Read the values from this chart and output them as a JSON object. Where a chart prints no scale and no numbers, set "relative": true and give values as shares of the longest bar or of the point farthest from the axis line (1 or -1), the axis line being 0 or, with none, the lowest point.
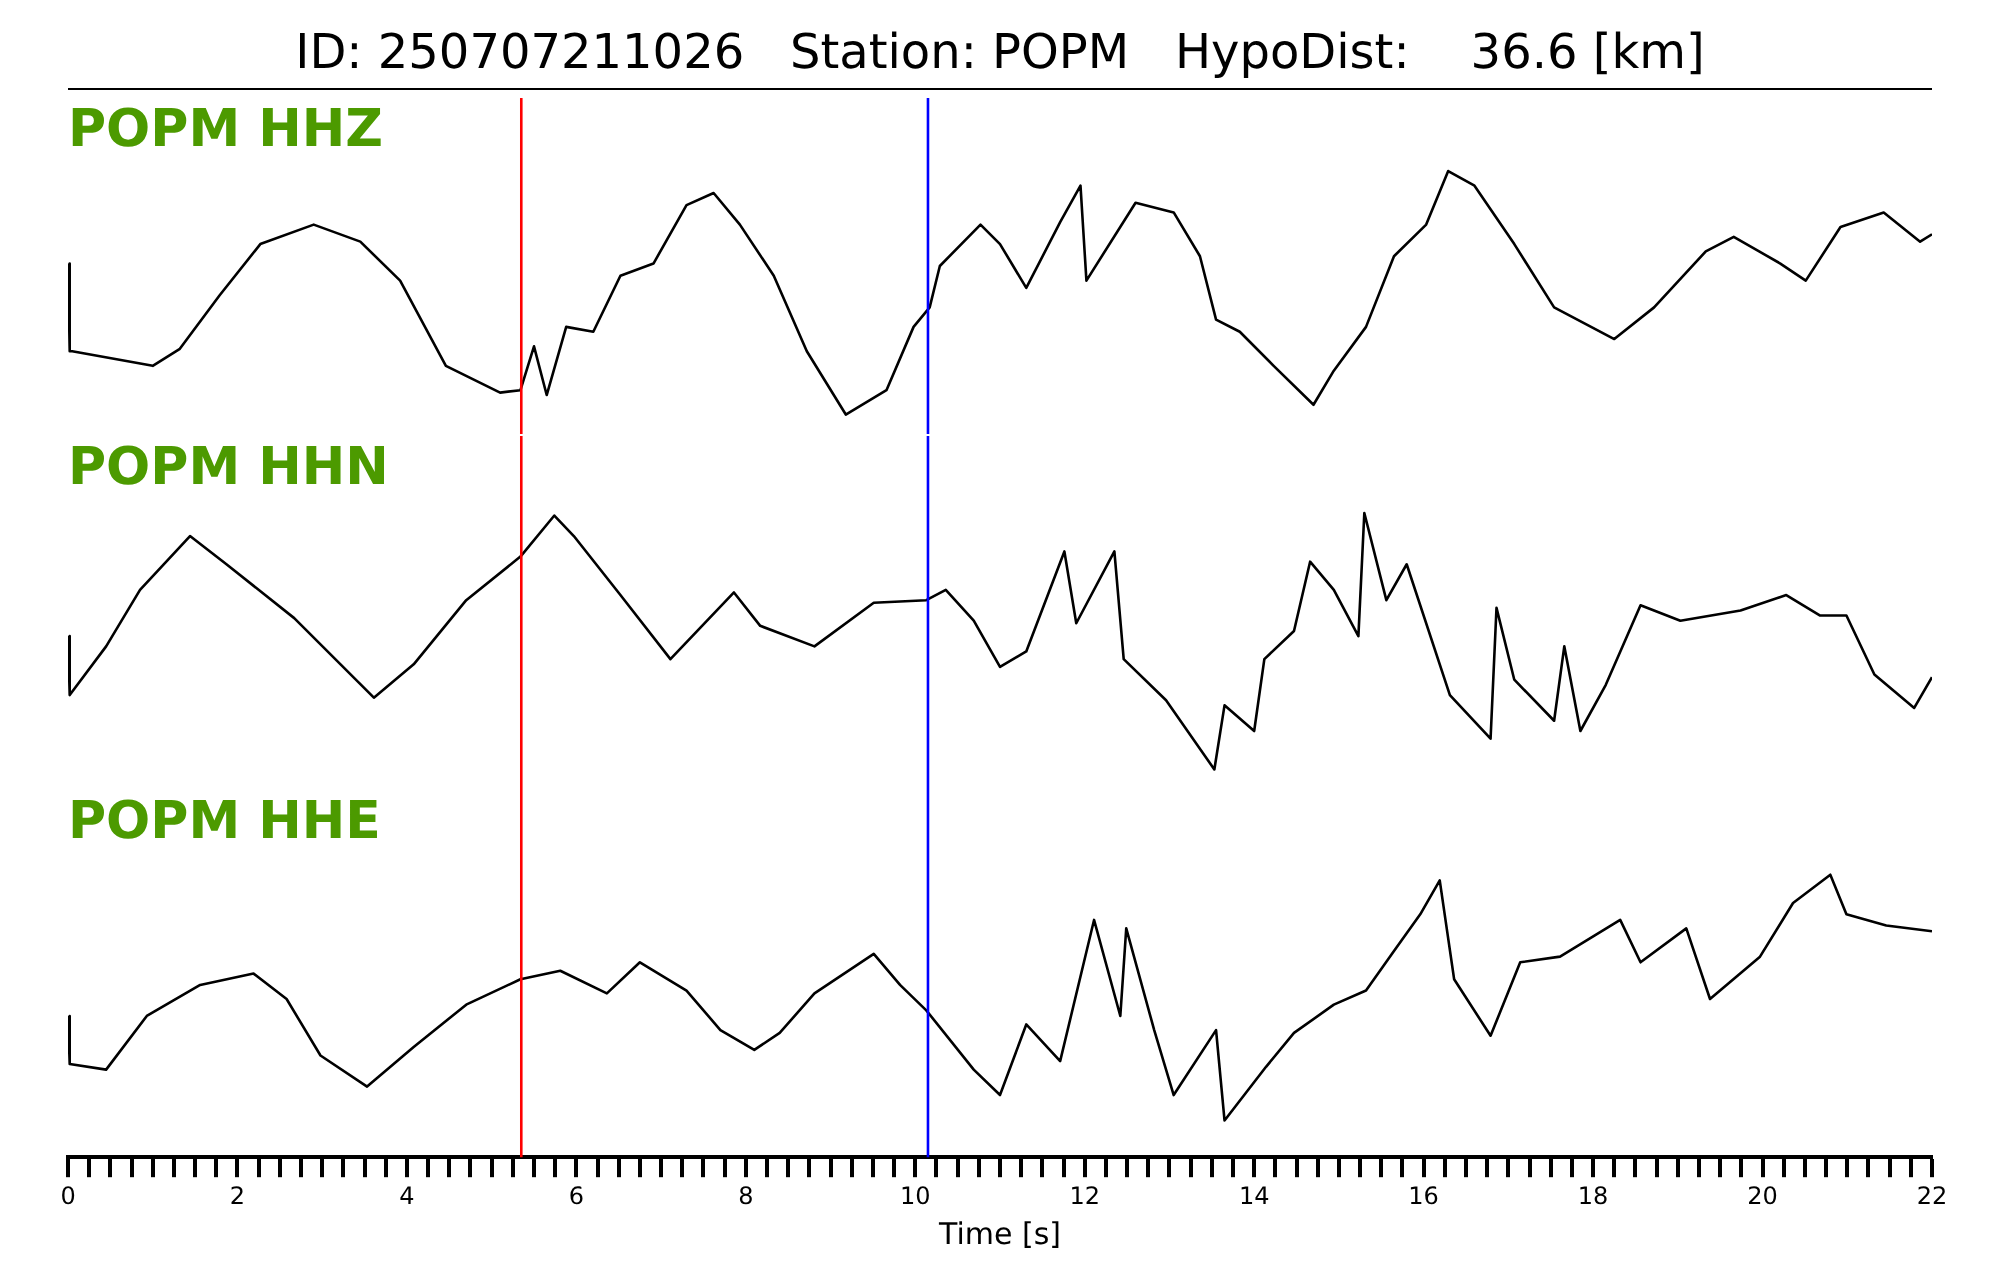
{
  "chart_data": [
    {
      "type": "line",
      "title": "ID: 250707211026   Station: POPM   HypoDist:    36.6 [km]",
      "relative": true,
      "xlim": [
        0,
        22
      ],
      "tick_labels": false,
      "x": [
        0,
        0.02,
        0.05,
        1.0,
        1.32,
        1.79,
        2.27,
        2.9,
        3.45,
        3.92,
        4.46,
        5.1,
        5.34,
        5.5,
        5.65,
        5.88,
        6.2,
        6.52,
        6.91,
        7.3,
        7.62,
        7.93,
        8.33,
        8.72,
        9.18,
        9.66,
        9.98,
        10.17,
        10.29,
        10.77,
        11.0,
        11.31,
        11.71,
        11.95,
        12.02,
        12.6,
        13.05,
        13.36,
        13.55,
        13.83,
        14.23,
        14.7,
        14.94,
        15.32,
        15.65,
        16.03,
        16.29,
        16.6,
        17.07,
        17.54,
        18.25,
        18.72,
        19.33,
        19.66,
        20.21,
        20.51,
        20.92,
        21.43,
        21.86,
        22.0
      ],
      "series": [
        {
          "name": "POPM HHZ",
          "color": "#000000",
          "values": [
            0.62,
            0.26,
            0.26,
            0.2,
            0.27,
            0.49,
            0.7,
            0.78,
            0.71,
            0.55,
            0.2,
            0.09,
            0.1,
            0.28,
            0.08,
            0.36,
            0.34,
            0.57,
            0.62,
            0.86,
            0.91,
            0.78,
            0.57,
            0.26,
            0.0,
            0.1,
            0.36,
            0.44,
            0.61,
            0.78,
            0.7,
            0.52,
            0.79,
            0.94,
            0.55,
            0.87,
            0.83,
            0.65,
            0.39,
            0.34,
            0.2,
            0.04,
            0.18,
            0.36,
            0.65,
            0.78,
            1.0,
            0.94,
            0.7,
            0.44,
            0.31,
            0.44,
            0.67,
            0.73,
            0.62,
            0.55,
            0.77,
            0.83,
            0.71,
            0.74
          ]
        }
      ],
      "ref_lines": [
        {
          "axis": "x",
          "value": 5.35,
          "color": "#ff0000"
        },
        {
          "axis": "x",
          "value": 10.15,
          "color": "#0000ff"
        }
      ]
    },
    {
      "type": "line",
      "relative": true,
      "xlim": [
        0,
        22
      ],
      "tick_labels": false,
      "x": [
        0,
        0.02,
        0.45,
        0.85,
        1.44,
        1.87,
        2.67,
        3.61,
        4.08,
        4.7,
        5.34,
        5.74,
        5.97,
        6.52,
        7.11,
        7.86,
        8.17,
        8.81,
        9.51,
        10.13,
        10.36,
        10.69,
        11.0,
        11.31,
        11.76,
        11.9,
        12.35,
        12.46,
        12.96,
        13.53,
        13.65,
        14.0,
        14.12,
        14.47,
        14.66,
        14.94,
        15.23,
        15.3,
        15.56,
        15.8,
        16.31,
        16.79,
        16.86,
        17.07,
        17.54,
        17.66,
        17.85,
        18.15,
        18.56,
        19.03,
        19.74,
        20.28,
        20.68,
        20.99,
        21.32,
        21.79,
        22.0
      ],
      "series": [
        {
          "name": "POPM HHN",
          "color": "#000000",
          "values": [
            0.52,
            0.29,
            0.48,
            0.7,
            0.91,
            0.8,
            0.59,
            0.28,
            0.41,
            0.66,
            0.83,
            0.99,
            0.91,
            0.68,
            0.43,
            0.69,
            0.56,
            0.48,
            0.65,
            0.66,
            0.7,
            0.58,
            0.4,
            0.46,
            0.85,
            0.57,
            0.85,
            0.43,
            0.27,
            0.0,
            0.25,
            0.15,
            0.43,
            0.54,
            0.81,
            0.7,
            0.52,
            1.0,
            0.66,
            0.8,
            0.29,
            0.12,
            0.63,
            0.35,
            0.19,
            0.48,
            0.15,
            0.33,
            0.64,
            0.58,
            0.62,
            0.68,
            0.6,
            0.6,
            0.37,
            0.24,
            0.36
          ]
        }
      ],
      "ref_lines": [
        {
          "axis": "x",
          "value": 5.35,
          "color": "#ff0000"
        },
        {
          "axis": "x",
          "value": 10.15,
          "color": "#0000ff"
        }
      ]
    },
    {
      "type": "line",
      "relative": true,
      "xlim": [
        0,
        22
      ],
      "tick_labels": "x",
      "xlabel": "Time [s]",
      "xticks": [
        0,
        {
          "value": 0.25,
          "label": null
        },
        {
          "value": 0.5,
          "label": null
        },
        {
          "value": 0.75,
          "label": null
        },
        {
          "value": 1,
          "label": null
        },
        {
          "value": 1.25,
          "label": null
        },
        {
          "value": 1.5,
          "label": null
        },
        {
          "value": 1.75,
          "label": null
        },
        2,
        {
          "value": 2.25,
          "label": null
        },
        {
          "value": 2.5,
          "label": null
        },
        {
          "value": 2.75,
          "label": null
        },
        {
          "value": 3,
          "label": null
        },
        {
          "value": 3.25,
          "label": null
        },
        {
          "value": 3.5,
          "label": null
        },
        {
          "value": 3.75,
          "label": null
        },
        4,
        {
          "value": 4.25,
          "label": null
        },
        {
          "value": 4.5,
          "label": null
        },
        {
          "value": 4.75,
          "label": null
        },
        {
          "value": 5,
          "label": null
        },
        {
          "value": 5.25,
          "label": null
        },
        {
          "value": 5.5,
          "label": null
        },
        {
          "value": 5.75,
          "label": null
        },
        6,
        {
          "value": 6.25,
          "label": null
        },
        {
          "value": 6.5,
          "label": null
        },
        {
          "value": 6.75,
          "label": null
        },
        {
          "value": 7,
          "label": null
        },
        {
          "value": 7.25,
          "label": null
        },
        {
          "value": 7.5,
          "label": null
        },
        {
          "value": 7.75,
          "label": null
        },
        8,
        {
          "value": 8.25,
          "label": null
        },
        {
          "value": 8.5,
          "label": null
        },
        {
          "value": 8.75,
          "label": null
        },
        {
          "value": 9,
          "label": null
        },
        {
          "value": 9.25,
          "label": null
        },
        {
          "value": 9.5,
          "label": null
        },
        {
          "value": 9.75,
          "label": null
        },
        10,
        {
          "value": 10.25,
          "label": null
        },
        {
          "value": 10.5,
          "label": null
        },
        {
          "value": 10.75,
          "label": null
        },
        {
          "value": 11,
          "label": null
        },
        {
          "value": 11.25,
          "label": null
        },
        {
          "value": 11.5,
          "label": null
        },
        {
          "value": 11.75,
          "label": null
        },
        12,
        {
          "value": 12.25,
          "label": null
        },
        {
          "value": 12.5,
          "label": null
        },
        {
          "value": 12.75,
          "label": null
        },
        {
          "value": 13,
          "label": null
        },
        {
          "value": 13.25,
          "label": null
        },
        {
          "value": 13.5,
          "label": null
        },
        {
          "value": 13.75,
          "label": null
        },
        14,
        {
          "value": 14.25,
          "label": null
        },
        {
          "value": 14.5,
          "label": null
        },
        {
          "value": 14.75,
          "label": null
        },
        {
          "value": 15,
          "label": null
        },
        {
          "value": 15.25,
          "label": null
        },
        {
          "value": 15.5,
          "label": null
        },
        {
          "value": 15.75,
          "label": null
        },
        16,
        {
          "value": 16.25,
          "label": null
        },
        {
          "value": 16.5,
          "label": null
        },
        {
          "value": 16.75,
          "label": null
        },
        {
          "value": 17,
          "label": null
        },
        {
          "value": 17.25,
          "label": null
        },
        {
          "value": 17.5,
          "label": null
        },
        {
          "value": 17.75,
          "label": null
        },
        18,
        {
          "value": 18.25,
          "label": null
        },
        {
          "value": 18.5,
          "label": null
        },
        {
          "value": 18.75,
          "label": null
        },
        {
          "value": 19,
          "label": null
        },
        {
          "value": 19.25,
          "label": null
        },
        {
          "value": 19.5,
          "label": null
        },
        {
          "value": 19.75,
          "label": null
        },
        20,
        {
          "value": 20.25,
          "label": null
        },
        {
          "value": 20.5,
          "label": null
        },
        {
          "value": 20.75,
          "label": null
        },
        {
          "value": 21,
          "label": null
        },
        {
          "value": 21.25,
          "label": null
        },
        {
          "value": 21.5,
          "label": null
        },
        {
          "value": 21.75,
          "label": null
        },
        22
      ],
      "x": [
        0,
        0.02,
        0.45,
        0.93,
        1.56,
        2.19,
        2.58,
        2.98,
        3.53,
        4.08,
        4.7,
        5.34,
        5.81,
        6.36,
        6.75,
        7.3,
        7.7,
        8.1,
        8.4,
        8.81,
        9.51,
        9.82,
        10.13,
        10.69,
        11.0,
        11.31,
        11.71,
        12.11,
        12.42,
        12.49,
        12.82,
        13.05,
        13.55,
        13.65,
        14.14,
        14.47,
        14.94,
        15.32,
        15.65,
        15.96,
        16.19,
        16.36,
        16.79,
        17.14,
        17.61,
        18.32,
        18.56,
        19.1,
        19.38,
        19.97,
        20.36,
        20.8,
        20.99,
        21.46,
        22.0
      ],
      "series": [
        {
          "name": "POPM HHE",
          "color": "#000000",
          "values": [
            0.5,
            0.33,
            0.31,
            0.5,
            0.61,
            0.65,
            0.56,
            0.36,
            0.25,
            0.39,
            0.54,
            0.63,
            0.66,
            0.58,
            0.69,
            0.59,
            0.45,
            0.38,
            0.44,
            0.58,
            0.72,
            0.61,
            0.52,
            0.31,
            0.22,
            0.47,
            0.34,
            0.84,
            0.5,
            0.81,
            0.45,
            0.22,
            0.45,
            0.13,
            0.32,
            0.44,
            0.54,
            0.59,
            0.73,
            0.86,
            0.98,
            0.63,
            0.43,
            0.69,
            0.71,
            0.84,
            0.69,
            0.81,
            0.56,
            0.71,
            0.9,
            1.0,
            0.86,
            0.82,
            0.8
          ]
        }
      ],
      "ref_lines": [
        {
          "axis": "x",
          "value": 5.35,
          "color": "#ff0000"
        },
        {
          "axis": "x",
          "value": 10.15,
          "color": "#0000ff"
        }
      ]
    }
  ]
}
